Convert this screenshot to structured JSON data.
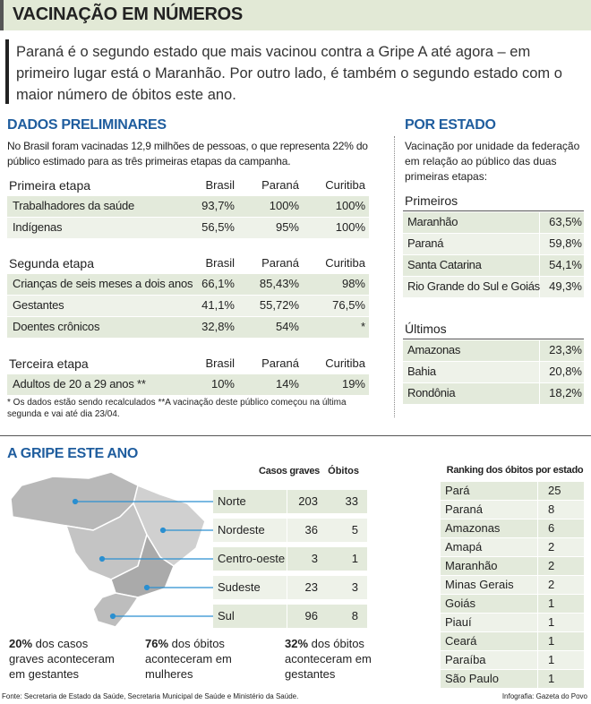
{
  "header": {
    "title": "VACINAÇÃO EM NÚMEROS",
    "intro": "Paraná é o segundo estado que mais vacinou contra a Gripe A até agora – em primeiro lugar está o Maranhão. Por outro lado, é também o segundo estado com o maior número de óbitos este ano."
  },
  "preliminares": {
    "title": "DADOS PRELIMINARES",
    "description": "No Brasil foram vacinadas 12,9 milhões de pessoas, o que representa 22% do público estimado para as três primeiras etapas da campanha.",
    "stages": [
      {
        "name": "Primeira etapa",
        "columns": [
          "Brasil",
          "Paraná",
          "Curitiba"
        ],
        "rows": [
          [
            "Trabalhadores da saúde",
            "93,7%",
            "100%",
            "100%"
          ],
          [
            "Indígenas",
            "56,5%",
            "95%",
            "100%"
          ]
        ]
      },
      {
        "name": "Segunda etapa",
        "columns": [
          "Brasil",
          "Paraná",
          "Curitiba"
        ],
        "rows": [
          [
            "Crianças de seis meses a dois anos",
            "66,1%",
            "85,43%",
            "98%"
          ],
          [
            "Gestantes",
            "41,1%",
            "55,72%",
            "76,5%"
          ],
          [
            "Doentes crônicos",
            "32,8%",
            "54%",
            "*"
          ]
        ]
      },
      {
        "name": "Terceira etapa",
        "columns": [
          "Brasil",
          "Paraná",
          "Curitiba"
        ],
        "rows": [
          [
            "Adultos de 20 a 29 anos **",
            "10%",
            "14%",
            "19%"
          ]
        ]
      }
    ],
    "footnote": "* Os dados estão sendo recalculados **A vacinação deste público começou na última segunda e vai até dia 23/04."
  },
  "por_estado": {
    "title": "POR ESTADO",
    "description": "Vacinação por unidade da federação em relação ao público das duas primeiras etapas:",
    "groups": [
      {
        "name": "Primeiros",
        "rows": [
          [
            "Maranhão",
            "63,5%"
          ],
          [
            "Paraná",
            "59,8%"
          ],
          [
            "Santa Catarina",
            "54,1%"
          ],
          [
            "Rio Grande do Sul e Goiás",
            "49,3%"
          ]
        ]
      },
      {
        "name": "Últimos",
        "rows": [
          [
            "Amazonas",
            "23,3%"
          ],
          [
            "Bahia",
            "20,8%"
          ],
          [
            "Rondônia",
            "18,2%"
          ]
        ]
      }
    ]
  },
  "gripe": {
    "title": "A GRIPE ESTE ANO",
    "columns": [
      "Casos graves",
      "Óbitos"
    ],
    "regions": [
      [
        "Norte",
        203,
        33
      ],
      [
        "Nordeste",
        36,
        5
      ],
      [
        "Centro-oeste",
        3,
        1
      ],
      [
        "Sudeste",
        23,
        3
      ],
      [
        "Sul",
        96,
        8
      ]
    ],
    "stats": [
      {
        "highlight": "20%",
        "text": "dos casos graves aconteceram em gestantes"
      },
      {
        "highlight": "76%",
        "text": "dos óbitos aconteceram em mulheres"
      },
      {
        "highlight": "32%",
        "text": "dos óbitos aconteceram em gestantes"
      }
    ],
    "ranking": {
      "title": "Ranking dos óbitos por estado",
      "rows": [
        [
          "Pará",
          25
        ],
        [
          "Paraná",
          8
        ],
        [
          "Amazonas",
          6
        ],
        [
          "Amapá",
          2
        ],
        [
          "Maranhão",
          2
        ],
        [
          "Minas Gerais",
          2
        ],
        [
          "Goiás",
          1
        ],
        [
          "Piauí",
          1
        ],
        [
          "Ceará",
          1
        ],
        [
          "Paraíba",
          1
        ],
        [
          "São Paulo",
          1
        ]
      ]
    }
  },
  "footer": {
    "source": "Fonte: Secretaria de Estado da Saúde, Secretaria Municipal de Saúde e Ministério da Saúde.",
    "credit": "Infografia: Gazeta do Povo"
  }
}
